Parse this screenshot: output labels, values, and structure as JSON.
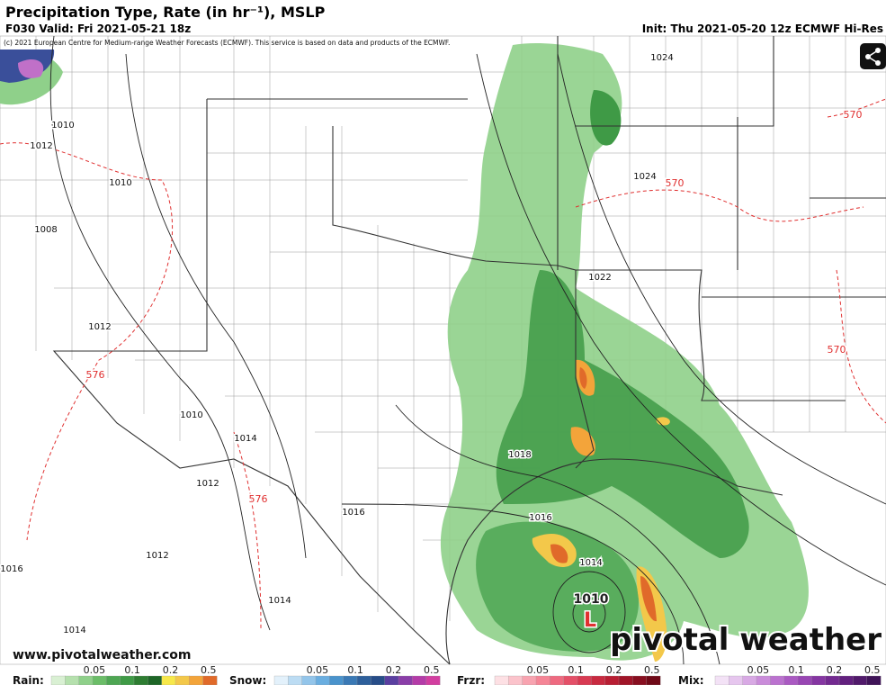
{
  "header": {
    "title": "Precipitation Type, Rate (in hr⁻¹), MSLP",
    "valid": "F030 Valid: Fri 2021-05-21 18z",
    "init": "Init: Thu 2021-05-20 12z ECMWF Hi-Res",
    "copyright": "(c) 2021 European Centre for Medium-range Weather Forecasts (ECMWF). This service is based on data and products of the ECMWF."
  },
  "map": {
    "contour_labels": [
      "1024",
      "570",
      "1024",
      "570",
      "1010",
      "1012",
      "1010",
      "1008",
      "1012",
      "576",
      "570",
      "1022",
      "1010",
      "1014",
      "1012",
      "576",
      "1018",
      "1016",
      "1016",
      "1012",
      "1014",
      "1016",
      "1014",
      "1014",
      "1010"
    ],
    "low_label": "L"
  },
  "footer": {
    "website": "www.pivotalweather.com",
    "logo": "pivotal weather"
  },
  "legend": [
    {
      "label": "Rain:",
      "ticks": [
        "0.05",
        "0.1",
        "0.2",
        "0.5"
      ]
    },
    {
      "label": "Snow:",
      "ticks": [
        "0.05",
        "0.1",
        "0.2",
        "0.5"
      ]
    },
    {
      "label": "Frzr:",
      "ticks": [
        "0.05",
        "0.1",
        "0.2",
        "0.5"
      ]
    },
    {
      "label": "Mix:",
      "ticks": [
        "0.05",
        "0.1",
        "0.2",
        "0.5"
      ]
    }
  ]
}
